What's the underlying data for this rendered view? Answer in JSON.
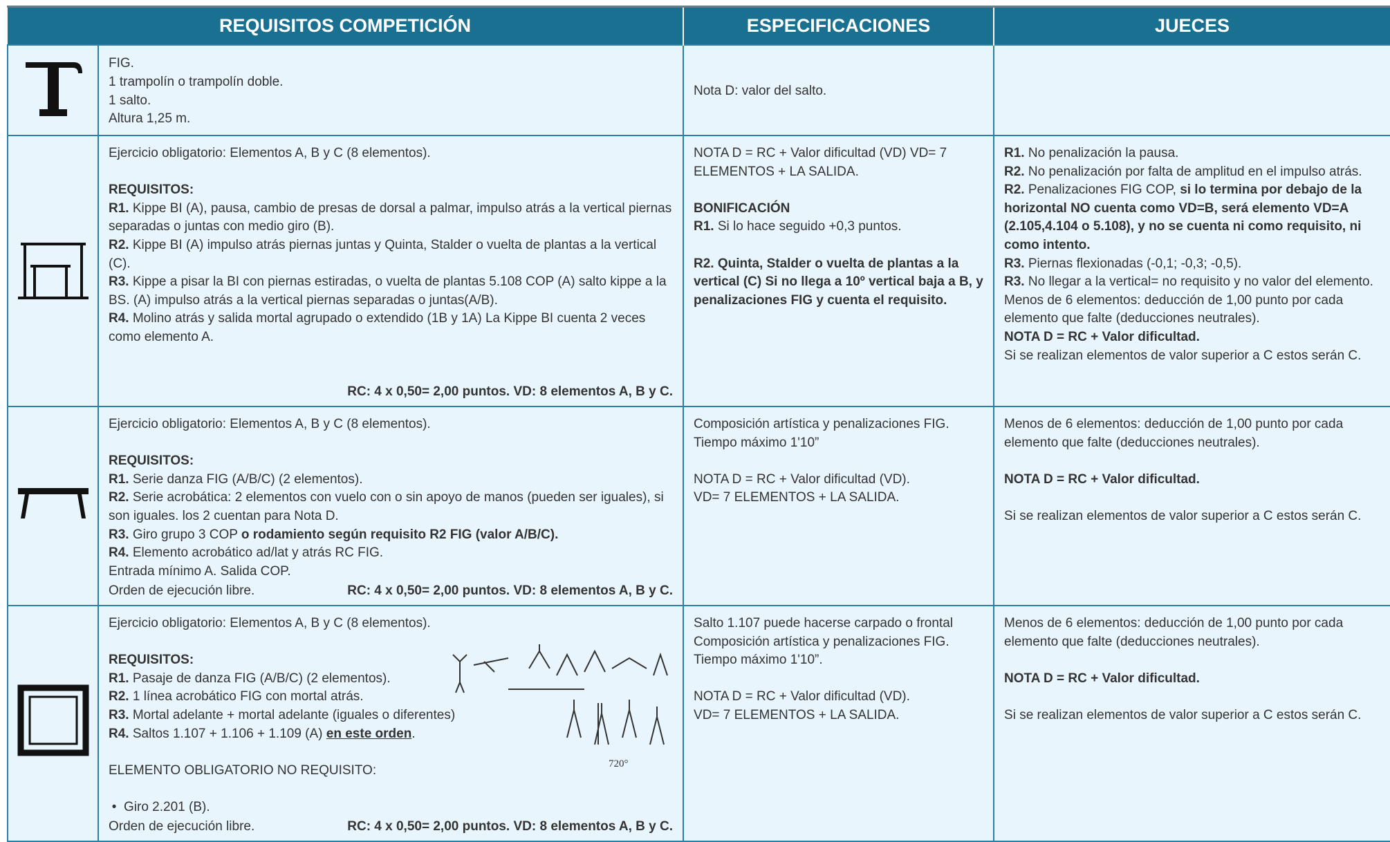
{
  "header": {
    "columns": [
      "REQUISITOS COMPETICIÓN",
      "ESPECIFICACIONES",
      "JUECES"
    ]
  },
  "rows": [
    {
      "requisitos": [
        {
          "lines": [
            [
              "FIG."
            ],
            [
              "1 trampolín o trampolín doble."
            ],
            [
              "1 salto."
            ],
            [
              "Altura 1,25 m."
            ]
          ]
        }
      ],
      "especificaciones": [
        {
          "lines": [
            [
              "Nota D: valor del salto."
            ]
          ]
        }
      ],
      "jueces": []
    },
    {
      "requisitos": [
        {
          "lines": [
            [
              "Ejercicio obligatorio: Elementos A, B y C (8 elementos)."
            ]
          ]
        },
        {
          "lines": [
            [
              {
                "text": "REQUISITOS:",
                "bold": true
              }
            ],
            [
              {
                "text": "R1.",
                "bold": true
              },
              " Kippe BI (A), pausa, cambio de presas de dorsal a palmar, impulso atrás a la vertical piernas separadas o juntas con medio giro (B)."
            ],
            [
              {
                "text": "R2.",
                "bold": true
              },
              " Kippe BI (A) impulso atrás piernas juntas y Quinta, Stalder o vuelta de plantas a la vertical (C)."
            ],
            [
              {
                "text": "R3.",
                "bold": true
              },
              " Kippe a pisar la BI con piernas estiradas, o vuelta de plantas 5.108 COP (A) salto kippe a la BS. (A) impulso atrás a la vertical piernas separadas o juntas(A/B)."
            ],
            [
              {
                "text": "R4.",
                "bold": true
              },
              " Molino atrás y salida mortal agrupado o extendido (1B y 1A) La Kippe BI cuenta 2 veces como elemento A."
            ]
          ]
        }
      ],
      "footer": {
        "right": "RC: 4 x 0,50= 2,00 puntos. VD: 8 elementos A, B y C."
      },
      "especificaciones": [
        {
          "lines": [
            [
              "NOTA D = RC + Valor dificultad (VD)  VD= 7 ELEMENTOS + LA SALIDA."
            ]
          ]
        },
        {
          "lines": [
            [
              {
                "text": "BONIFICACIÓN",
                "bold": true
              }
            ],
            [
              {
                "text": "R1.",
                "bold": true
              },
              " Si lo hace seguido +0,3 puntos."
            ]
          ]
        },
        {
          "lines": [
            [
              {
                "text": "R2. Quinta, Stalder o vuelta de plantas a la vertical (C) Si no llega a 10º vertical baja a B, y penalizaciones FIG y cuenta el requisito.",
                "bold": true
              }
            ]
          ]
        }
      ],
      "jueces": [
        {
          "lines": [
            [
              {
                "text": "R1.",
                "bold": true
              },
              " No penalización la pausa."
            ],
            [
              {
                "text": "R2.",
                "bold": true
              },
              " No penalización por falta de amplitud en el impulso atrás."
            ],
            [
              {
                "text": "R2.",
                "bold": true
              },
              " Penalizaciones FIG COP, ",
              {
                "text": "si lo termina por debajo de la horizontal NO cuenta como VD=B, será elemento VD=A (2.105,4.104 o 5.108), y no se cuenta ni como requisito, ni como intento.",
                "bold": true
              }
            ],
            [
              {
                "text": "R3.",
                "bold": true
              },
              " Piernas flexionadas (-0,1; -0,3; -0,5)."
            ],
            [
              {
                "text": "R3.",
                "bold": true
              },
              " No llegar a la vertical= no requisito y no valor del elemento."
            ],
            [
              "Menos de 6 elementos: deducción de 1,00 punto por cada elemento que falte (deducciones neutrales)."
            ],
            [
              {
                "text": "NOTA D = RC + Valor dificultad.",
                "bold": true
              }
            ],
            [
              "Si se realizan elementos de valor superior a C estos serán C."
            ]
          ]
        }
      ]
    },
    {
      "requisitos": [
        {
          "lines": [
            [
              "Ejercicio obligatorio: Elementos A, B y C (8 elementos)."
            ]
          ]
        },
        {
          "lines": [
            [
              {
                "text": "REQUISITOS:",
                "bold": true
              }
            ],
            [
              {
                "text": "R1.",
                "bold": true
              },
              " Serie danza FIG (A/B/C) (2 elementos)."
            ],
            [
              {
                "text": "R2.",
                "bold": true
              },
              " Serie acrobática: 2 elementos con vuelo con o sin apoyo de manos (pueden ser iguales), si son iguales. los 2 cuentan para Nota D."
            ],
            [
              {
                "text": "R3.",
                "bold": true
              },
              " Giro grupo 3 COP ",
              {
                "text": "o rodamiento según requisito R2 FIG (valor A/B/C).",
                "bold": true
              }
            ],
            [
              {
                "text": "R4.",
                "bold": true
              },
              " Elemento acrobático ad/lat y atrás RC FIG."
            ],
            [
              "Entrada mínimo A. Salida COP."
            ]
          ]
        }
      ],
      "footer": {
        "left": "Orden de ejecución libre.",
        "right": "RC: 4 x 0,50= 2,00 puntos. VD: 8 elementos A, B y C."
      },
      "especificaciones": [
        {
          "lines": [
            [
              "Composición artística y penalizaciones FIG."
            ],
            [
              "Tiempo máximo 1'10”"
            ]
          ]
        },
        {
          "lines": [
            [
              "NOTA D = RC + Valor dificultad (VD)."
            ],
            [
              "VD= 7 ELEMENTOS + LA SALIDA."
            ]
          ]
        }
      ],
      "jueces": [
        {
          "lines": [
            [
              "Menos de 6 elementos: deducción de 1,00 punto por cada elemento que falte (deducciones neutrales)."
            ]
          ]
        },
        {
          "lines": [
            [
              {
                "text": "NOTA D = RC + Valor dificultad.",
                "bold": true
              }
            ]
          ]
        },
        {
          "lines": [
            [
              "Si se realizan elementos de valor superior a C estos serán C."
            ]
          ]
        }
      ]
    },
    {
      "requisitos": [
        {
          "lines": [
            [
              "Ejercicio obligatorio: Elementos A, B y C (8 elementos)."
            ]
          ]
        },
        {
          "lines": [
            [
              {
                "text": "REQUISITOS:",
                "bold": true
              }
            ],
            [
              {
                "text": "R1.",
                "bold": true
              },
              " Pasaje de danza FIG (A/B/C) (2 elementos)."
            ],
            [
              {
                "text": "R2.",
                "bold": true
              },
              " 1 línea acrobático FIG con mortal atrás."
            ],
            [
              {
                "text": "R3.",
                "bold": true
              },
              " Mortal adelante + mortal adelante (iguales o diferentes)"
            ],
            [
              {
                "text": "R4.",
                "bold": true
              },
              " Saltos 1.107 + 1.106 + 1.109 (A) ",
              {
                "text": "en este orden",
                "bold": true,
                "underline": true
              },
              "."
            ]
          ]
        },
        {
          "lines": [
            [
              "ELEMENTO OBLIGATORIO NO REQUISITO:"
            ]
          ]
        },
        {
          "lines": [
            [
              "Giro 2.201 (B)."
            ]
          ],
          "bullets": true
        }
      ],
      "figure_caption": "720°",
      "footer": {
        "left": "Orden de ejecución libre.",
        "right": "RC: 4 x 0,50= 2,00 puntos. VD: 8 elementos A, B y C."
      },
      "especificaciones": [
        {
          "lines": [
            [
              "Salto 1.107 puede hacerse carpado o frontal"
            ],
            [
              "Composición artística y penalizaciones FIG."
            ],
            [
              "Tiempo máximo 1'10”."
            ]
          ]
        },
        {
          "lines": [
            [
              "NOTA D = RC + Valor dificultad (VD)."
            ],
            [
              "VD= 7 ELEMENTOS + LA SALIDA."
            ]
          ]
        }
      ],
      "jueces": [
        {
          "lines": [
            [
              "Menos de 6 elementos: deducción de 1,00 punto por cada elemento que falte (deducciones neutrales)."
            ]
          ]
        },
        {
          "lines": [
            [
              {
                "text": "NOTA D = RC + Valor dificultad.",
                "bold": true
              }
            ]
          ]
        },
        {
          "lines": [
            [
              "Si se realizan elementos de valor superior a C estos serán C."
            ]
          ]
        }
      ]
    }
  ]
}
